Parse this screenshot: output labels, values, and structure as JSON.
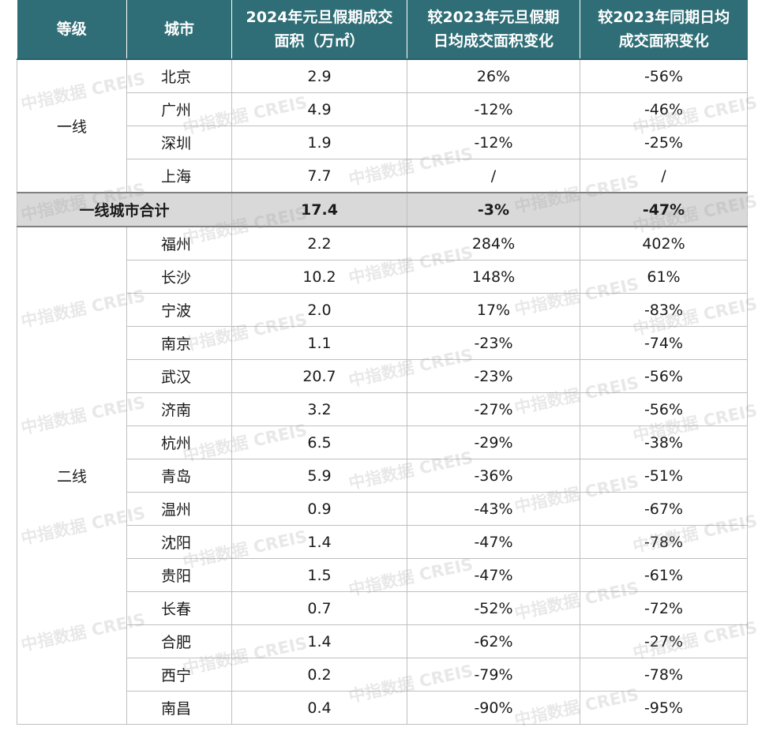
{
  "headers": [
    "等级",
    "城市",
    "2024年元旦假期成交\n面积（万㎡）",
    "较2023年元旦假期\n日均成交面积变化",
    "较2023年同期日均\n成交面积变化"
  ],
  "tier1": {
    "label": "一线",
    "rows": [
      {
        "city": "北京",
        "area": "2.9",
        "vs_holiday": "26%",
        "vs_period": "-56%"
      },
      {
        "city": "广州",
        "area": "4.9",
        "vs_holiday": "-12%",
        "vs_period": "-46%"
      },
      {
        "city": "深圳",
        "area": "1.9",
        "vs_holiday": "-12%",
        "vs_period": "-25%"
      },
      {
        "city": "上海",
        "area": "7.7",
        "vs_holiday": "/",
        "vs_period": "/"
      }
    ]
  },
  "tier1_total": {
    "label": "一线城市合计",
    "area": "17.4",
    "vs_holiday": "-3%",
    "vs_period": "-47%"
  },
  "tier2": {
    "label": "二线",
    "rows": [
      {
        "city": "福州",
        "area": "2.2",
        "vs_holiday": "284%",
        "vs_period": "402%"
      },
      {
        "city": "长沙",
        "area": "10.2",
        "vs_holiday": "148%",
        "vs_period": "61%"
      },
      {
        "city": "宁波",
        "area": "2.0",
        "vs_holiday": "17%",
        "vs_period": "-83%"
      },
      {
        "city": "南京",
        "area": "1.1",
        "vs_holiday": "-23%",
        "vs_period": "-74%"
      },
      {
        "city": "武汉",
        "area": "20.7",
        "vs_holiday": "-23%",
        "vs_period": "-56%"
      },
      {
        "city": "济南",
        "area": "3.2",
        "vs_holiday": "-27%",
        "vs_period": "-56%"
      },
      {
        "city": "杭州",
        "area": "6.5",
        "vs_holiday": "-29%",
        "vs_period": "-38%"
      },
      {
        "city": "青岛",
        "area": "5.9",
        "vs_holiday": "-36%",
        "vs_period": "-51%"
      },
      {
        "city": "温州",
        "area": "0.9",
        "vs_holiday": "-43%",
        "vs_period": "-67%"
      },
      {
        "city": "沈阳",
        "area": "1.4",
        "vs_holiday": "-47%",
        "vs_period": "-78%"
      },
      {
        "city": "贵阳",
        "area": "1.5",
        "vs_holiday": "-47%",
        "vs_period": "-61%"
      },
      {
        "city": "长春",
        "area": "0.7",
        "vs_holiday": "-52%",
        "vs_period": "-72%"
      },
      {
        "city": "合肥",
        "area": "1.4",
        "vs_holiday": "-62%",
        "vs_period": "-27%"
      },
      {
        "city": "西宁",
        "area": "0.2",
        "vs_holiday": "-79%",
        "vs_period": "-78%"
      },
      {
        "city": "南昌",
        "area": "0.4",
        "vs_holiday": "-90%",
        "vs_period": "-95%"
      }
    ]
  },
  "watermark": "中指数据 CREIS"
}
